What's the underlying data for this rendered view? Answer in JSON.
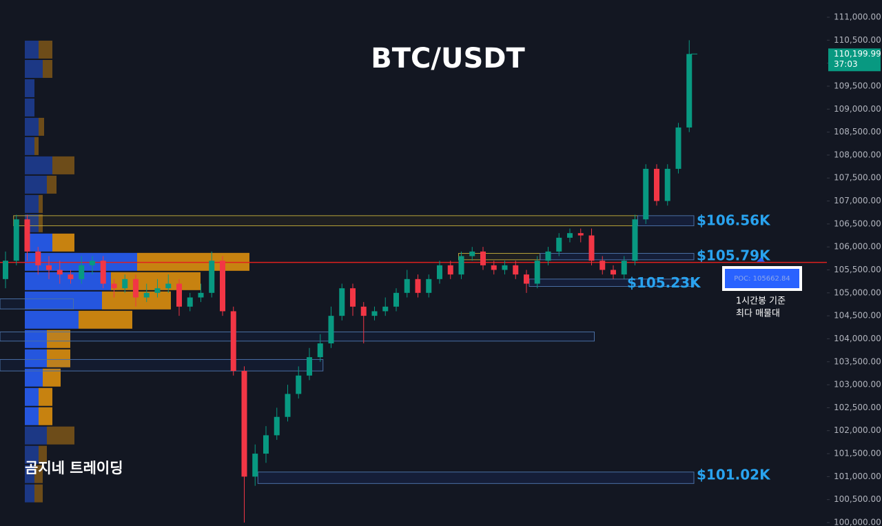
{
  "chart_data": {
    "type": "candlestick",
    "title": "BTC/USDT",
    "up_color": "#089981",
    "down_color": "#f23645",
    "open": [
      105300,
      105700,
      106600,
      105900,
      105600,
      105500,
      105400,
      105300,
      105600,
      105700,
      105200,
      105100,
      105300,
      104900,
      105000,
      105100,
      105200,
      104700,
      104900,
      105000,
      105700,
      104600,
      103300,
      101000,
      101500,
      101900,
      102300,
      102800,
      103200,
      103600,
      103900,
      104500,
      105100,
      104700,
      104500,
      104600,
      104700,
      105000,
      105300,
      105000,
      105300,
      105600,
      105400,
      105800,
      105900,
      105600,
      105500,
      105600,
      105400,
      105200,
      105700,
      105900,
      106200,
      106300,
      106250,
      105700,
      105500,
      105400,
      105700,
      106600,
      107700,
      107000,
      107700,
      108600
    ],
    "high": [
      105900,
      106700,
      106700,
      106000,
      105800,
      105700,
      105500,
      105800,
      105800,
      105800,
      105300,
      105400,
      105400,
      105200,
      105300,
      105400,
      105300,
      105000,
      105200,
      105900,
      105800,
      104700,
      103400,
      101700,
      102100,
      102500,
      103000,
      103400,
      103800,
      104100,
      104700,
      105200,
      105200,
      104800,
      104700,
      104900,
      105100,
      105500,
      105400,
      105400,
      105700,
      105700,
      105900,
      106000,
      106000,
      105700,
      105700,
      105700,
      105500,
      105800,
      106000,
      106300,
      106400,
      106400,
      106400,
      105800,
      105600,
      105800,
      106700,
      107800,
      107800,
      107800,
      108700,
      110500
    ],
    "low": [
      105100,
      105600,
      105700,
      105400,
      105300,
      105200,
      105200,
      105200,
      105400,
      105100,
      104900,
      105000,
      104700,
      104800,
      104900,
      105000,
      104500,
      104600,
      104800,
      104900,
      104500,
      103200,
      100000,
      100800,
      101300,
      101800,
      102200,
      102700,
      103100,
      103500,
      103800,
      104400,
      104500,
      103900,
      104400,
      104500,
      104600,
      104900,
      104900,
      104900,
      105200,
      105300,
      105300,
      105700,
      105500,
      105400,
      105400,
      105300,
      105000,
      105100,
      105600,
      105800,
      106100,
      106100,
      105600,
      105400,
      105300,
      105300,
      105600,
      106500,
      106900,
      106900,
      107600,
      108500
    ],
    "close": [
      105700,
      106600,
      105900,
      105600,
      105500,
      105400,
      105300,
      105600,
      105700,
      105200,
      105100,
      105300,
      104900,
      105000,
      105100,
      105200,
      104700,
      104900,
      105000,
      105700,
      104600,
      103300,
      101000,
      101500,
      101900,
      102300,
      102800,
      103200,
      103600,
      103900,
      104500,
      105100,
      104700,
      104500,
      104600,
      104700,
      105000,
      105300,
      105000,
      105300,
      105600,
      105400,
      105800,
      105900,
      105600,
      105500,
      105600,
      105400,
      105200,
      105700,
      105900,
      106200,
      106300,
      106250,
      105700,
      105500,
      105400,
      105700,
      106600,
      107700,
      107000,
      107700,
      108600,
      110199.99
    ],
    "ylim": [
      100000,
      111000
    ],
    "yticks": [
      {
        "value": 100000,
        "label": "100,000.00"
      },
      {
        "value": 100500,
        "label": "100,500.00"
      },
      {
        "value": 101000,
        "label": "101,000.00"
      },
      {
        "value": 101500,
        "label": "101,500.00"
      },
      {
        "value": 102000,
        "label": "102,000.00"
      },
      {
        "value": 102500,
        "label": "102,500.00"
      },
      {
        "value": 103000,
        "label": "103,000.00"
      },
      {
        "value": 103500,
        "label": "103,500.00"
      },
      {
        "value": 104000,
        "label": "104,000.00"
      },
      {
        "value": 104500,
        "label": "104,500.00"
      },
      {
        "value": 105000,
        "label": "105,000.00"
      },
      {
        "value": 105500,
        "label": "105,500.00"
      },
      {
        "value": 106000,
        "label": "106,000.00"
      },
      {
        "value": 106500,
        "label": "106,500.00"
      },
      {
        "value": 107000,
        "label": "107,000.00"
      },
      {
        "value": 107500,
        "label": "107,500.00"
      },
      {
        "value": 108000,
        "label": "108,000.00"
      },
      {
        "value": 108500,
        "label": "108,500.00"
      },
      {
        "value": 109000,
        "label": "109,000.00"
      },
      {
        "value": 109500,
        "label": "109,500.00"
      },
      {
        "value": 110000,
        "label": "110,000.00"
      },
      {
        "value": 110500,
        "label": "110,500.00"
      },
      {
        "value": 111000,
        "label": "111,000.00"
      }
    ],
    "last_price": {
      "value": 110199.99,
      "label": "110,199.99"
    },
    "countdown": "37:03",
    "poc": {
      "value": 105662.84,
      "label": "POC: 105662.84"
    },
    "zones": [
      {
        "low": 106460,
        "high": 106680,
        "start": 1,
        "end": 58,
        "level": {
          "value": 106560,
          "label": "$106.56K"
        }
      },
      {
        "low": 105720,
        "high": 105860,
        "start": 42,
        "end": 49,
        "level": {
          "value": 105790,
          "label": "$105.79K"
        }
      },
      {
        "low": 105140,
        "high": 105300,
        "start": 48,
        "end": 48,
        "level": {
          "value": 105230,
          "label": "$105.23K"
        }
      },
      {
        "low": 100850,
        "high": 101100,
        "start": 23,
        "end": 23,
        "level": {
          "value": 101020,
          "label": "$101.02K"
        }
      }
    ],
    "boxes": [
      {
        "low": 103950,
        "high": 104150,
        "start": 0,
        "end": 54
      },
      {
        "low": 103300,
        "high": 103550,
        "start": 0,
        "end": 29
      },
      {
        "low": 104650,
        "high": 104870,
        "start": 0,
        "end": 6
      }
    ],
    "volume_profile": {
      "price": [
        110295,
        109875,
        109455,
        109035,
        108615,
        108195,
        107775,
        107355,
        106935,
        106515,
        106095,
        105675,
        105255,
        104835,
        104415,
        103995,
        103575,
        103155,
        102735,
        102315,
        101895,
        101475,
        101055,
        100635
      ],
      "buy": [
        20,
        26,
        14,
        14,
        20,
        14,
        40,
        32,
        20,
        20,
        40,
        163,
        125,
        112,
        78,
        32,
        32,
        26,
        20,
        20,
        32,
        20,
        14,
        14
      ],
      "sell": [
        20,
        14,
        0,
        0,
        8,
        6,
        32,
        14,
        6,
        6,
        32,
        163,
        130,
        100,
        78,
        34,
        34,
        26,
        20,
        20,
        40,
        12,
        12,
        12
      ]
    },
    "watermark": "곰지네 트레이딩",
    "note": [
      "1시간봉 기준",
      "최다 매물대"
    ]
  }
}
